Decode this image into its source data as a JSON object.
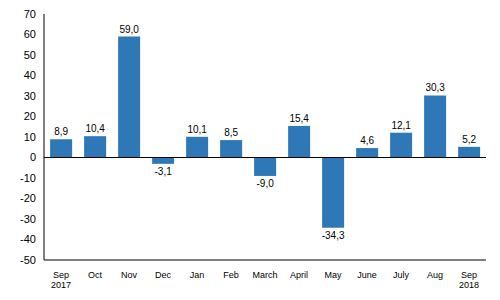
{
  "chart_data": {
    "type": "bar",
    "categories": [
      "Sep\n2017",
      "Oct",
      "Nov",
      "Dec",
      "Jan",
      "Feb",
      "March",
      "April",
      "May",
      "June",
      "July",
      "Aug",
      "Sep\n2018"
    ],
    "values": [
      8.9,
      10.4,
      59.0,
      -3.1,
      10.1,
      8.5,
      -9.0,
      15.4,
      -34.3,
      4.6,
      12.1,
      30.3,
      5.2
    ],
    "value_labels": [
      "8,9",
      "10,4",
      "59,0",
      "-3,1",
      "10,1",
      "8,5",
      "-9,0",
      "15,4",
      "-34,3",
      "4,6",
      "12,1",
      "30,3",
      "5,2"
    ],
    "color": "#2f78b7",
    "ylim": [
      -50,
      70
    ],
    "yticks": [
      -50,
      -40,
      -30,
      -20,
      -10,
      0,
      10,
      20,
      30,
      40,
      50,
      60,
      70
    ],
    "grid": false,
    "data_labels": true
  }
}
